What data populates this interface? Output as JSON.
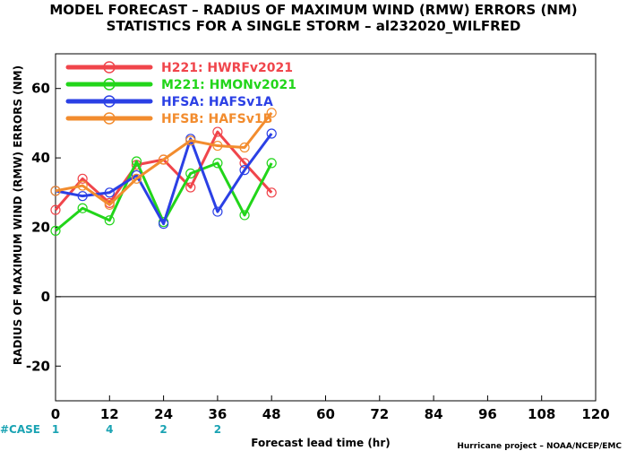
{
  "chart_data": {
    "type": "line",
    "title": "MODEL FORECAST – RADIUS OF MAXIMUM WIND (RMW) ERRORS (NM)",
    "subtitle": "STATISTICS FOR A SINGLE STORM – al232020_WILFRED",
    "xlabel": "Forecast lead time (hr)",
    "ylabel": "RADIUS OF MAXIMUM WIND (RMW) ERRORS (NM)",
    "xlim": [
      0,
      120
    ],
    "ylim": [
      -30,
      70
    ],
    "xticks": [
      0,
      12,
      24,
      36,
      48,
      60,
      72,
      84,
      96,
      108,
      120
    ],
    "yticks": [
      -20,
      0,
      20,
      40,
      60
    ],
    "xtick_labels": [
      "0",
      "12",
      "24",
      "36",
      "48",
      "60",
      "72",
      "84",
      "96",
      "108",
      "120"
    ],
    "ytick_labels": [
      "-20",
      "0",
      "20",
      "40",
      "60"
    ],
    "legend_position": "top-left",
    "zero_line": true,
    "series": [
      {
        "name": "H221:  HWRFv2021",
        "color": "#f0454b",
        "x": [
          0,
          6,
          12,
          18,
          24,
          30,
          36,
          42,
          48
        ],
        "y": [
          25,
          34,
          27,
          38,
          39.5,
          31.5,
          47.5,
          38.5,
          30
        ]
      },
      {
        "name": "M221:  HMONv2021",
        "color": "#22d51a",
        "x": [
          0,
          6,
          12,
          18,
          24,
          30,
          36,
          42,
          48
        ],
        "y": [
          19,
          25.5,
          22,
          39,
          21.5,
          35.5,
          38.5,
          23.5,
          38.5
        ]
      },
      {
        "name": "HFSA:  HAFSv1A",
        "color": "#2b40e5",
        "x": [
          0,
          6,
          12,
          18,
          24,
          30,
          36,
          42,
          48
        ],
        "y": [
          30.5,
          29,
          30,
          35,
          21,
          45.5,
          24.5,
          36.5,
          47
        ]
      },
      {
        "name": "HFSB:  HAFSv1B",
        "color": "#f28c2e",
        "x": [
          0,
          6,
          12,
          18,
          24,
          30,
          36,
          42,
          48
        ],
        "y": [
          30.5,
          32,
          26.5,
          34,
          39.5,
          45,
          43.5,
          43,
          53
        ]
      }
    ],
    "case_counts": {
      "label": "#CASE",
      "x": [
        0,
        12,
        24,
        36
      ],
      "values": [
        "1",
        "4",
        "2",
        "2"
      ]
    },
    "credit": "Hurricane project – NOAA/NCEP/EMC"
  }
}
